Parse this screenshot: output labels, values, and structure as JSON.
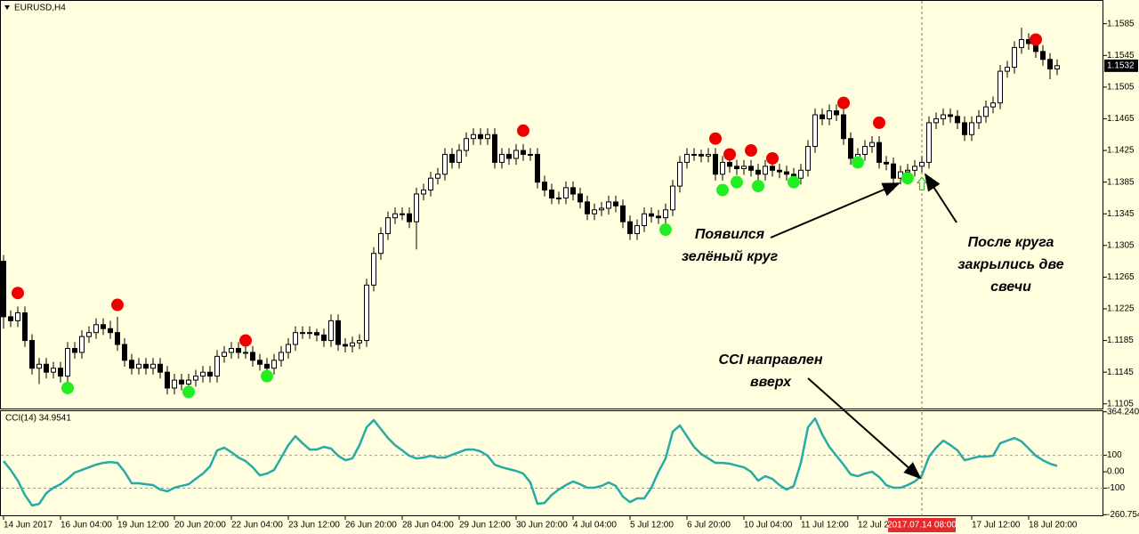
{
  "chart_data": {
    "type": "candlestick",
    "title": "EURUSD,H4",
    "color_up": "#ffffff",
    "color_down": "#000000",
    "ylim": [
      1.1098,
      1.1615
    ],
    "yticks": [
      1.1585,
      1.1545,
      1.1505,
      1.1465,
      1.1425,
      1.1385,
      1.1345,
      1.1305,
      1.1265,
      1.1225,
      1.1185,
      1.1145,
      1.1105
    ],
    "current_price": 1.1532,
    "candles": [
      [
        1.1285,
        1.1293,
        1.12,
        1.1215
      ],
      [
        1.1215,
        1.1223,
        1.1202,
        1.121
      ],
      [
        1.121,
        1.1228,
        1.1202,
        1.122
      ],
      [
        1.122,
        1.1228,
        1.1177,
        1.1185
      ],
      [
        1.1185,
        1.1193,
        1.1142,
        1.115
      ],
      [
        1.115,
        1.1163,
        1.113,
        1.1155
      ],
      [
        1.1155,
        1.1163,
        1.1137,
        1.1145
      ],
      [
        1.1145,
        1.1158,
        1.1137,
        1.115
      ],
      [
        1.115,
        1.1158,
        1.1132,
        1.114
      ],
      [
        1.114,
        1.1183,
        1.1132,
        1.1175
      ],
      [
        1.1175,
        1.1183,
        1.1162,
        1.117
      ],
      [
        1.117,
        1.1198,
        1.1162,
        1.119
      ],
      [
        1.119,
        1.1203,
        1.1182,
        1.1195
      ],
      [
        1.1195,
        1.1213,
        1.1187,
        1.1205
      ],
      [
        1.1205,
        1.1213,
        1.1192,
        1.12
      ],
      [
        1.12,
        1.121,
        1.1187,
        1.1195
      ],
      [
        1.1195,
        1.1215,
        1.1172,
        1.118
      ],
      [
        1.118,
        1.1188,
        1.1152,
        1.116
      ],
      [
        1.116,
        1.1168,
        1.1142,
        1.115
      ],
      [
        1.115,
        1.1163,
        1.1142,
        1.1155
      ],
      [
        1.1155,
        1.1163,
        1.1142,
        1.115
      ],
      [
        1.115,
        1.1163,
        1.1142,
        1.1155
      ],
      [
        1.1155,
        1.1163,
        1.1137,
        1.1145
      ],
      [
        1.1145,
        1.1153,
        1.1117,
        1.1125
      ],
      [
        1.1125,
        1.1143,
        1.1117,
        1.1135
      ],
      [
        1.1135,
        1.1143,
        1.1122,
        1.113
      ],
      [
        1.113,
        1.1143,
        1.1122,
        1.1135
      ],
      [
        1.1135,
        1.1148,
        1.1127,
        1.114
      ],
      [
        1.114,
        1.1153,
        1.1132,
        1.1145
      ],
      [
        1.1145,
        1.1153,
        1.1132,
        1.114
      ],
      [
        1.114,
        1.1173,
        1.1132,
        1.1165
      ],
      [
        1.1165,
        1.1178,
        1.1157,
        1.117
      ],
      [
        1.117,
        1.1183,
        1.1162,
        1.1175
      ],
      [
        1.1175,
        1.1183,
        1.1162,
        1.117
      ],
      [
        1.117,
        1.1178,
        1.1162,
        1.117
      ],
      [
        1.117,
        1.1178,
        1.1152,
        1.116
      ],
      [
        1.116,
        1.1168,
        1.1147,
        1.1155
      ],
      [
        1.1155,
        1.1163,
        1.1142,
        1.115
      ],
      [
        1.115,
        1.1168,
        1.1142,
        1.116
      ],
      [
        1.116,
        1.1178,
        1.1152,
        1.117
      ],
      [
        1.117,
        1.1188,
        1.1162,
        1.118
      ],
      [
        1.118,
        1.1203,
        1.1172,
        1.1195
      ],
      [
        1.1195,
        1.1203,
        1.1187,
        1.1195
      ],
      [
        1.1195,
        1.1203,
        1.1187,
        1.1195
      ],
      [
        1.1195,
        1.12,
        1.1184,
        1.1192
      ],
      [
        1.1192,
        1.12,
        1.1177,
        1.1185
      ],
      [
        1.1185,
        1.1218,
        1.1177,
        1.121
      ],
      [
        1.121,
        1.1218,
        1.1172,
        1.118
      ],
      [
        1.118,
        1.1188,
        1.117,
        1.1178
      ],
      [
        1.1178,
        1.119,
        1.117,
        1.1182
      ],
      [
        1.1182,
        1.1193,
        1.1174,
        1.1185
      ],
      [
        1.1185,
        1.1263,
        1.1177,
        1.1255
      ],
      [
        1.1255,
        1.1303,
        1.1247,
        1.1295
      ],
      [
        1.1295,
        1.1328,
        1.1287,
        1.132
      ],
      [
        1.132,
        1.1348,
        1.1312,
        1.134
      ],
      [
        1.134,
        1.1353,
        1.1332,
        1.1345
      ],
      [
        1.1345,
        1.1353,
        1.1337,
        1.1345
      ],
      [
        1.1345,
        1.1353,
        1.1327,
        1.1335
      ],
      [
        1.1335,
        1.1378,
        1.13,
        1.137
      ],
      [
        1.137,
        1.1383,
        1.1362,
        1.1375
      ],
      [
        1.1375,
        1.1398,
        1.1367,
        1.139
      ],
      [
        1.139,
        1.1403,
        1.1382,
        1.1395
      ],
      [
        1.1395,
        1.1428,
        1.1387,
        1.142
      ],
      [
        1.142,
        1.1428,
        1.1402,
        1.141
      ],
      [
        1.141,
        1.1433,
        1.1402,
        1.1425
      ],
      [
        1.1425,
        1.1448,
        1.1417,
        1.144
      ],
      [
        1.144,
        1.1453,
        1.1432,
        1.1445
      ],
      [
        1.1445,
        1.1453,
        1.1432,
        1.144
      ],
      [
        1.144,
        1.1453,
        1.1432,
        1.1445
      ],
      [
        1.1445,
        1.1453,
        1.1402,
        1.141
      ],
      [
        1.141,
        1.1428,
        1.1402,
        1.142
      ],
      [
        1.142,
        1.1428,
        1.1407,
        1.1415
      ],
      [
        1.1415,
        1.1433,
        1.1407,
        1.1425
      ],
      [
        1.1425,
        1.1433,
        1.1412,
        1.142
      ],
      [
        1.142,
        1.1428,
        1.1412,
        1.142
      ],
      [
        1.142,
        1.1428,
        1.1377,
        1.1385
      ],
      [
        1.1385,
        1.1393,
        1.1367,
        1.1375
      ],
      [
        1.1375,
        1.1383,
        1.1357,
        1.1365
      ],
      [
        1.1365,
        1.1373,
        1.1357,
        1.1365
      ],
      [
        1.1365,
        1.1386,
        1.1357,
        1.1378
      ],
      [
        1.1378,
        1.1386,
        1.1362,
        1.137
      ],
      [
        1.137,
        1.1378,
        1.1352,
        1.136
      ],
      [
        1.136,
        1.1368,
        1.1337,
        1.1345
      ],
      [
        1.1345,
        1.1358,
        1.1337,
        1.135
      ],
      [
        1.135,
        1.136,
        1.1342,
        1.1352
      ],
      [
        1.1352,
        1.1368,
        1.1344,
        1.136
      ],
      [
        1.136,
        1.1368,
        1.1347,
        1.1355
      ],
      [
        1.1355,
        1.1363,
        1.1327,
        1.1335
      ],
      [
        1.1335,
        1.1343,
        1.1312,
        1.132
      ],
      [
        1.132,
        1.1338,
        1.1312,
        1.133
      ],
      [
        1.133,
        1.1353,
        1.1322,
        1.1345
      ],
      [
        1.1345,
        1.1353,
        1.1334,
        1.1342
      ],
      [
        1.1342,
        1.135,
        1.1332,
        1.134
      ],
      [
        1.134,
        1.1358,
        1.1332,
        1.135
      ],
      [
        1.135,
        1.1388,
        1.1342,
        1.138
      ],
      [
        1.138,
        1.1418,
        1.1372,
        1.141
      ],
      [
        1.141,
        1.1428,
        1.1402,
        1.142
      ],
      [
        1.142,
        1.1428,
        1.1412,
        1.142
      ],
      [
        1.142,
        1.1426,
        1.141,
        1.1418
      ],
      [
        1.1418,
        1.1428,
        1.141,
        1.142
      ],
      [
        1.142,
        1.1428,
        1.1387,
        1.1395
      ],
      [
        1.1395,
        1.1418,
        1.1387,
        1.141
      ],
      [
        1.141,
        1.1418,
        1.1397,
        1.1405
      ],
      [
        1.1405,
        1.1413,
        1.1394,
        1.1402
      ],
      [
        1.1402,
        1.1413,
        1.1394,
        1.1405
      ],
      [
        1.1405,
        1.1413,
        1.1392,
        1.14
      ],
      [
        1.14,
        1.1408,
        1.1387,
        1.1395
      ],
      [
        1.1395,
        1.1413,
        1.1387,
        1.1405
      ],
      [
        1.1405,
        1.1413,
        1.1392,
        1.14
      ],
      [
        1.14,
        1.1408,
        1.139,
        1.1398
      ],
      [
        1.1398,
        1.1406,
        1.1387,
        1.1395
      ],
      [
        1.1395,
        1.1403,
        1.1382,
        1.139
      ],
      [
        1.139,
        1.1408,
        1.1382,
        1.14
      ],
      [
        1.14,
        1.1438,
        1.1392,
        1.143
      ],
      [
        1.143,
        1.1478,
        1.1422,
        1.147
      ],
      [
        1.147,
        1.1478,
        1.1457,
        1.1465
      ],
      [
        1.1465,
        1.1483,
        1.1457,
        1.1475
      ],
      [
        1.1475,
        1.1483,
        1.1462,
        1.147
      ],
      [
        1.147,
        1.1478,
        1.1432,
        1.144
      ],
      [
        1.144,
        1.1448,
        1.1407,
        1.1415
      ],
      [
        1.1415,
        1.1428,
        1.1407,
        1.142
      ],
      [
        1.142,
        1.1438,
        1.1412,
        1.143
      ],
      [
        1.143,
        1.1443,
        1.1422,
        1.1435
      ],
      [
        1.1435,
        1.1443,
        1.1402,
        1.141
      ],
      [
        1.141,
        1.1418,
        1.14,
        1.1408
      ],
      [
        1.1408,
        1.1416,
        1.1375,
        1.139
      ],
      [
        1.139,
        1.1406,
        1.1382,
        1.1398
      ],
      [
        1.1398,
        1.1408,
        1.139,
        1.14
      ],
      [
        1.14,
        1.1413,
        1.1392,
        1.1405
      ],
      [
        1.1405,
        1.1418,
        1.1397,
        1.141
      ],
      [
        1.141,
        1.1468,
        1.1402,
        1.146
      ],
      [
        1.146,
        1.1473,
        1.1452,
        1.1465
      ],
      [
        1.1465,
        1.1478,
        1.1457,
        1.147
      ],
      [
        1.147,
        1.1478,
        1.146,
        1.1468
      ],
      [
        1.1468,
        1.1476,
        1.1452,
        1.146
      ],
      [
        1.146,
        1.1468,
        1.1437,
        1.1445
      ],
      [
        1.1445,
        1.1468,
        1.1437,
        1.146
      ],
      [
        1.146,
        1.1476,
        1.1452,
        1.1468
      ],
      [
        1.1468,
        1.1488,
        1.146,
        1.148
      ],
      [
        1.148,
        1.1493,
        1.1472,
        1.1485
      ],
      [
        1.1485,
        1.1533,
        1.1477,
        1.1525
      ],
      [
        1.1525,
        1.1538,
        1.1517,
        1.153
      ],
      [
        1.153,
        1.1563,
        1.1522,
        1.1555
      ],
      [
        1.1555,
        1.158,
        1.1547,
        1.1565
      ],
      [
        1.1565,
        1.1573,
        1.1552,
        1.156
      ],
      [
        1.156,
        1.1568,
        1.1542,
        1.155
      ],
      [
        1.155,
        1.1558,
        1.1532,
        1.154
      ],
      [
        1.154,
        1.1548,
        1.1515,
        1.1528
      ],
      [
        1.1528,
        1.154,
        1.152,
        1.1532
      ]
    ],
    "xticks": [
      {
        "value": 0,
        "label": "14 Jun 2017"
      },
      {
        "value": 8,
        "label": "16 Jun 04:00"
      },
      {
        "value": 16,
        "label": "19 Jun 12:00"
      },
      {
        "value": 24,
        "label": "20 Jun 20:00"
      },
      {
        "value": 32,
        "label": "22 Jun 04:00"
      },
      {
        "value": 40,
        "label": "23 Jun 12:00"
      },
      {
        "value": 48,
        "label": "26 Jun 20:00"
      },
      {
        "value": 56,
        "label": "28 Jun 04:00"
      },
      {
        "value": 64,
        "label": "29 Jun 12:00"
      },
      {
        "value": 72,
        "label": "30 Jun 20:00"
      },
      {
        "value": 80,
        "label": "4 Jul 04:00"
      },
      {
        "value": 88,
        "label": "5 Jul 12:00"
      },
      {
        "value": 96,
        "label": "6 Jul 20:00"
      },
      {
        "value": 104,
        "label": "10 Jul 04:00"
      },
      {
        "value": 112,
        "label": "11 Jul 12:00"
      },
      {
        "value": 120,
        "label": "12 Jul 20:00"
      },
      {
        "value": 136,
        "label": "17 Jul 12:00"
      },
      {
        "value": 144,
        "label": "18 Jul 20:00"
      }
    ],
    "crosshair": {
      "value": 129,
      "label": "2017.07.14 08:00",
      "color": "#e52a2a"
    },
    "sell_signals": {
      "color": "#ee0000",
      "x": [
        2,
        16,
        34,
        73,
        100,
        102,
        105,
        108,
        118,
        123,
        145
      ],
      "values": [
        1.1245,
        1.123,
        1.1185,
        1.145,
        1.144,
        1.142,
        1.1425,
        1.1415,
        1.1485,
        1.146,
        1.1565
      ]
    },
    "buy_signals": {
      "color": "#22ee22",
      "x": [
        9,
        26,
        37,
        93,
        101,
        103,
        106,
        111,
        120,
        127
      ],
      "values": [
        1.1125,
        1.112,
        1.114,
        1.1325,
        1.1375,
        1.1385,
        1.138,
        1.1385,
        1.141,
        1.139
      ]
    },
    "entry_signal": {
      "x": 129,
      "value": 1.1382,
      "color": "#33bb33"
    },
    "indicator": {
      "type": "line",
      "label": "CCI(14) 34.9541",
      "color": "#28aaa6",
      "ylim": [
        -270,
        368
      ],
      "yticks": [
        364.2405,
        100,
        {
          "value": 0,
          "label": "0.00"
        },
        -100,
        -260.754
      ],
      "levels": [
        100,
        -100
      ],
      "values": [
        65,
        11,
        -54,
        -141,
        -205,
        -195,
        -130,
        -97,
        -76,
        -43,
        -5,
        11,
        27,
        43,
        54,
        59,
        54,
        0,
        -70,
        -70,
        -76,
        -81,
        -108,
        -119,
        -97,
        -86,
        -76,
        -43,
        -11,
        32,
        130,
        146,
        119,
        86,
        65,
        27,
        -22,
        -11,
        11,
        86,
        162,
        216,
        173,
        135,
        135,
        151,
        141,
        97,
        70,
        81,
        162,
        270,
        314,
        259,
        205,
        162,
        130,
        97,
        81,
        86,
        97,
        86,
        86,
        103,
        119,
        135,
        135,
        124,
        97,
        43,
        27,
        16,
        5,
        -11,
        -65,
        -195,
        -189,
        -141,
        -108,
        -81,
        -59,
        -76,
        -97,
        -97,
        -86,
        -65,
        -86,
        -151,
        -184,
        -162,
        -162,
        -97,
        0,
        81,
        243,
        281,
        216,
        151,
        108,
        81,
        54,
        54,
        49,
        38,
        27,
        0,
        -54,
        -27,
        -43,
        -81,
        -108,
        -86,
        54,
        270,
        324,
        227,
        151,
        97,
        43,
        -16,
        -27,
        -11,
        0,
        -32,
        -81,
        -97,
        -97,
        -81,
        -59,
        -22,
        92,
        146,
        189,
        162,
        130,
        70,
        81,
        92,
        92,
        97,
        173,
        189,
        205,
        184,
        141,
        97,
        70,
        49,
        34.9541
      ]
    },
    "annotations": [
      [
        "Появился",
        "зелёный круг"
      ],
      [
        "После круга",
        "закрылись две",
        "свечи"
      ],
      [
        "CCI направлен",
        "вверх"
      ]
    ]
  }
}
